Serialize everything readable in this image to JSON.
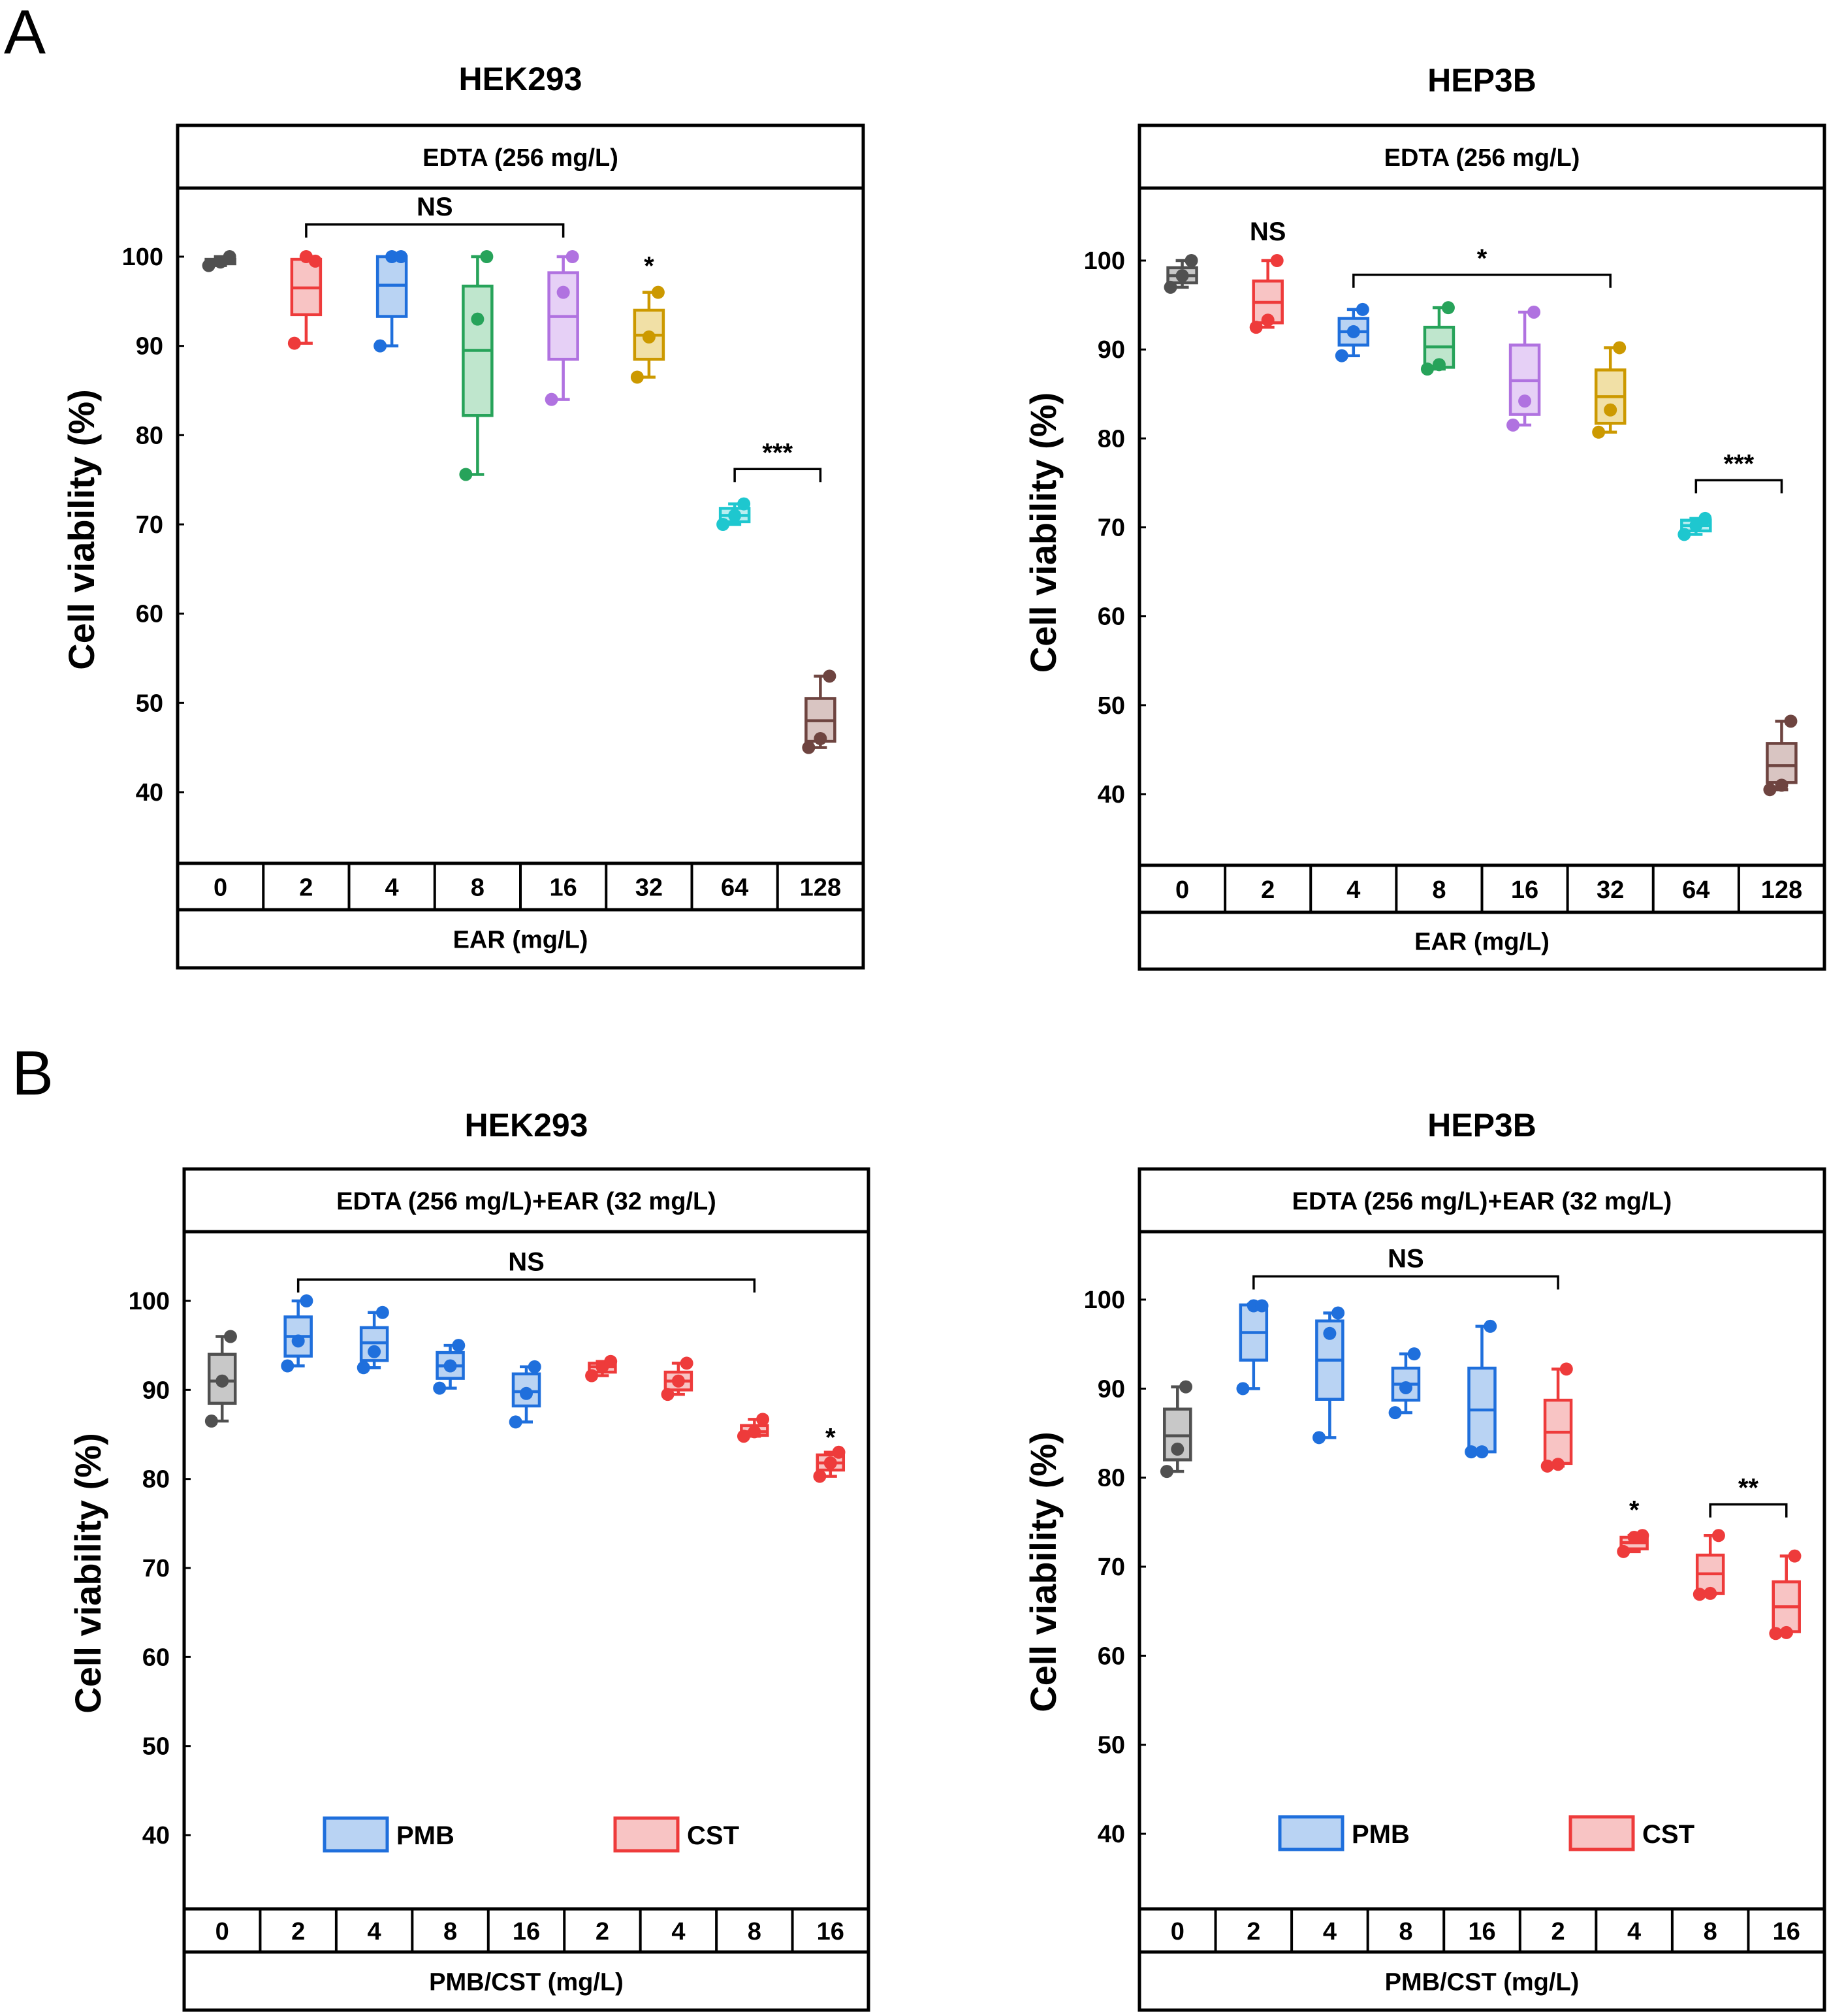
{
  "panels": [
    {
      "id": "A",
      "label": "A"
    },
    {
      "id": "B",
      "label": "B"
    }
  ],
  "chart_data": [
    {
      "type": "box",
      "panel": "A",
      "title": "HEK293",
      "condition": "EDTA (256 mg/L)",
      "xlabel": "EAR (mg/L)",
      "ylabel": "Cell viability (%)",
      "ylim": [
        30,
        108
      ],
      "yticks": [
        40,
        50,
        60,
        70,
        80,
        90,
        100
      ],
      "categories": [
        "0",
        "2",
        "4",
        "8",
        "16",
        "32",
        "64",
        "128"
      ],
      "boxes": [
        {
          "color": "#505050",
          "fill": "#c8c8c8",
          "min": 99.0,
          "q1": 99.2,
          "median": 99.4,
          "q3": 99.7,
          "max": 100.0,
          "points": [
            99.0,
            99.4,
            100.0
          ]
        },
        {
          "color": "#ee3b3b",
          "fill": "#f8c4c4",
          "min": 90.3,
          "q1": 93.5,
          "median": 96.5,
          "q3": 99.7,
          "max": 100.0,
          "points": [
            90.3,
            100.0,
            99.5
          ]
        },
        {
          "color": "#1f6fdc",
          "fill": "#b9d3f3",
          "min": 90.0,
          "q1": 93.3,
          "median": 96.8,
          "q3": 100.0,
          "max": 100.0,
          "points": [
            90.0,
            100.0,
            100.0
          ]
        },
        {
          "color": "#27a35a",
          "fill": "#bfe6cd",
          "min": 75.6,
          "q1": 82.2,
          "median": 89.5,
          "q3": 96.7,
          "max": 100.0,
          "points": [
            75.6,
            93.0,
            100.0
          ]
        },
        {
          "color": "#b072e0",
          "fill": "#e6d0f6",
          "min": 84.0,
          "q1": 88.5,
          "median": 93.3,
          "q3": 98.2,
          "max": 100.0,
          "points": [
            84.0,
            96.0,
            100.0
          ]
        },
        {
          "color": "#cc9900",
          "fill": "#f1e0a6",
          "min": 86.5,
          "q1": 88.5,
          "median": 91.2,
          "q3": 94.0,
          "max": 96.0,
          "points": [
            86.5,
            91.0,
            96.0
          ]
        },
        {
          "color": "#1ec7cf",
          "fill": "#b8eef1",
          "min": 70.0,
          "q1": 70.3,
          "median": 71.0,
          "q3": 71.8,
          "max": 72.3,
          "points": [
            70.0,
            71.0,
            72.3
          ]
        },
        {
          "color": "#6e4440",
          "fill": "#d9c5c2",
          "min": 45.0,
          "q1": 45.7,
          "median": 48.0,
          "q3": 50.5,
          "max": 53.0,
          "points": [
            45.0,
            46.0,
            53.0
          ]
        }
      ],
      "annotations": [
        {
          "text": "NS",
          "bracket": [
            1,
            4
          ],
          "y": 103.6
        },
        {
          "text": "*",
          "at": 5,
          "y": 99.6
        },
        {
          "text": "***",
          "bracket": [
            6,
            7
          ],
          "y": 76.2
        }
      ]
    },
    {
      "type": "box",
      "panel": "A",
      "title": "HEP3B",
      "condition": "EDTA (256 mg/L)",
      "xlabel": "EAR (mg/L)",
      "ylabel": "Cell viability (%)",
      "ylim": [
        30,
        108
      ],
      "yticks": [
        40,
        50,
        60,
        70,
        80,
        90,
        100
      ],
      "categories": [
        "0",
        "2",
        "4",
        "8",
        "16",
        "32",
        "64",
        "128"
      ],
      "boxes": [
        {
          "color": "#505050",
          "fill": "#c8c8c8",
          "min": 97.0,
          "q1": 97.5,
          "median": 98.3,
          "q3": 99.2,
          "max": 100.0,
          "points": [
            97.0,
            98.3,
            100.0
          ]
        },
        {
          "color": "#ee3b3b",
          "fill": "#f8c4c4",
          "min": 92.5,
          "q1": 93.0,
          "median": 95.3,
          "q3": 97.7,
          "max": 100.0,
          "points": [
            92.5,
            93.3,
            100.0
          ]
        },
        {
          "color": "#1f6fdc",
          "fill": "#b9d3f3",
          "min": 89.3,
          "q1": 90.5,
          "median": 92.0,
          "q3": 93.5,
          "max": 94.5,
          "points": [
            89.3,
            92.0,
            94.5
          ]
        },
        {
          "color": "#27a35a",
          "fill": "#bfe6cd",
          "min": 87.8,
          "q1": 88.0,
          "median": 90.3,
          "q3": 92.5,
          "max": 94.7,
          "points": [
            87.8,
            88.3,
            94.7
          ]
        },
        {
          "color": "#b072e0",
          "fill": "#e6d0f6",
          "min": 81.5,
          "q1": 82.7,
          "median": 86.5,
          "q3": 90.5,
          "max": 94.2,
          "points": [
            81.5,
            84.2,
            94.2
          ]
        },
        {
          "color": "#cc9900",
          "fill": "#f1e0a6",
          "min": 80.7,
          "q1": 81.7,
          "median": 84.7,
          "q3": 87.7,
          "max": 90.2,
          "points": [
            80.7,
            83.2,
            90.2
          ]
        },
        {
          "color": "#1ec7cf",
          "fill": "#b8eef1",
          "min": 69.2,
          "q1": 69.6,
          "median": 70.2,
          "q3": 70.8,
          "max": 71.0,
          "points": [
            69.2,
            70.2,
            71.0
          ]
        },
        {
          "color": "#6e4440",
          "fill": "#d9c5c2",
          "min": 40.5,
          "q1": 41.3,
          "median": 43.2,
          "q3": 45.7,
          "max": 48.2,
          "points": [
            40.5,
            41.0,
            48.2
          ]
        }
      ],
      "annotations": [
        {
          "text": "NS",
          "at": 1,
          "y": 103.0
        },
        {
          "text": "*",
          "bracket": [
            2,
            5
          ],
          "y": 98.4
        },
        {
          "text": "***",
          "bracket": [
            6,
            7
          ],
          "y": 75.3
        }
      ]
    },
    {
      "type": "box",
      "panel": "B",
      "title": "HEK293",
      "condition": "EDTA (256 mg/L)+EAR (32 mg/L)",
      "xlabel": "PMB/CST (mg/L)",
      "ylabel": "Cell viability (%)",
      "ylim": [
        30,
        108
      ],
      "yticks": [
        40,
        50,
        60,
        70,
        80,
        90,
        100
      ],
      "categories": [
        "0",
        "2",
        "4",
        "8",
        "16",
        "2",
        "4",
        "8",
        "16"
      ],
      "boxes": [
        {
          "color": "#505050",
          "fill": "#c8c8c8",
          "min": 86.5,
          "q1": 88.5,
          "median": 91.0,
          "q3": 94.0,
          "max": 96.0,
          "points": [
            86.5,
            91.0,
            96.0
          ]
        },
        {
          "color": "#1f6fdc",
          "fill": "#b9d3f3",
          "min": 92.7,
          "q1": 93.8,
          "median": 96.0,
          "q3": 98.2,
          "max": 100.0,
          "points": [
            92.7,
            95.5,
            100.0
          ]
        },
        {
          "color": "#1f6fdc",
          "fill": "#b9d3f3",
          "min": 92.5,
          "q1": 93.3,
          "median": 95.3,
          "q3": 97.0,
          "max": 98.7,
          "points": [
            92.5,
            94.3,
            98.7
          ]
        },
        {
          "color": "#1f6fdc",
          "fill": "#b9d3f3",
          "min": 90.2,
          "q1": 91.3,
          "median": 92.7,
          "q3": 94.2,
          "max": 95.0,
          "points": [
            90.2,
            92.7,
            95.0
          ]
        },
        {
          "color": "#1f6fdc",
          "fill": "#b9d3f3",
          "min": 86.4,
          "q1": 88.2,
          "median": 89.8,
          "q3": 91.8,
          "max": 92.6,
          "points": [
            86.4,
            89.6,
            92.6
          ]
        },
        {
          "color": "#ee3b3b",
          "fill": "#f8c4c4",
          "min": 91.6,
          "q1": 92.0,
          "median": 92.6,
          "q3": 93.0,
          "max": 93.2,
          "points": [
            91.6,
            92.6,
            93.2
          ]
        },
        {
          "color": "#ee3b3b",
          "fill": "#f8c4c4",
          "min": 89.5,
          "q1": 90.0,
          "median": 91.0,
          "q3": 92.0,
          "max": 93.0,
          "points": [
            89.5,
            91.0,
            93.0
          ]
        },
        {
          "color": "#ee3b3b",
          "fill": "#f8c4c4",
          "min": 84.8,
          "q1": 84.9,
          "median": 85.3,
          "q3": 86.0,
          "max": 86.7,
          "points": [
            84.8,
            85.3,
            86.7
          ]
        },
        {
          "color": "#ee3b3b",
          "fill": "#f8c4c4",
          "min": 80.3,
          "q1": 81.0,
          "median": 81.8,
          "q3": 82.7,
          "max": 83.0,
          "points": [
            80.3,
            81.8,
            83.0
          ]
        }
      ],
      "annotations": [
        {
          "text": "NS",
          "bracket": [
            1,
            7
          ],
          "y": 102.4
        },
        {
          "text": "*",
          "at": 8,
          "y": 85.3
        }
      ],
      "legend": [
        {
          "label": "PMB",
          "color": "#1f6fdc",
          "fill": "#b9d3f3"
        },
        {
          "label": "CST",
          "color": "#ee3b3b",
          "fill": "#f8c4c4"
        }
      ]
    },
    {
      "type": "box",
      "panel": "B",
      "title": "HEP3B",
      "condition": "EDTA (256 mg/L)+EAR (32 mg/L)",
      "xlabel": "PMB/CST (mg/L)",
      "ylabel": "Cell viability (%)",
      "ylim": [
        30,
        108
      ],
      "yticks": [
        40,
        50,
        60,
        70,
        80,
        90,
        100
      ],
      "categories": [
        "0",
        "2",
        "4",
        "8",
        "16",
        "2",
        "4",
        "8",
        "16"
      ],
      "boxes": [
        {
          "color": "#505050",
          "fill": "#c8c8c8",
          "min": 80.7,
          "q1": 82.0,
          "median": 84.7,
          "q3": 87.7,
          "max": 90.2,
          "points": [
            80.7,
            83.2,
            90.2
          ]
        },
        {
          "color": "#1f6fdc",
          "fill": "#b9d3f3",
          "min": 90.0,
          "q1": 93.2,
          "median": 96.3,
          "q3": 99.4,
          "max": 99.5,
          "points": [
            90.0,
            99.3,
            99.3
          ]
        },
        {
          "color": "#1f6fdc",
          "fill": "#b9d3f3",
          "min": 84.5,
          "q1": 88.8,
          "median": 93.2,
          "q3": 97.6,
          "max": 98.5,
          "points": [
            84.5,
            96.2,
            98.5
          ]
        },
        {
          "color": "#1f6fdc",
          "fill": "#b9d3f3",
          "min": 87.3,
          "q1": 88.7,
          "median": 90.5,
          "q3": 92.3,
          "max": 93.9,
          "points": [
            87.3,
            90.1,
            93.9
          ]
        },
        {
          "color": "#1f6fdc",
          "fill": "#b9d3f3",
          "min": 82.9,
          "q1": 82.9,
          "median": 87.6,
          "q3": 92.3,
          "max": 97.0,
          "points": [
            82.9,
            82.9,
            97.0
          ]
        },
        {
          "color": "#ee3b3b",
          "fill": "#f8c4c4",
          "min": 81.3,
          "q1": 81.6,
          "median": 85.1,
          "q3": 88.7,
          "max": 92.2,
          "points": [
            81.3,
            81.5,
            92.2
          ]
        },
        {
          "color": "#ee3b3b",
          "fill": "#f8c4c4",
          "min": 71.7,
          "q1": 72.0,
          "median": 72.7,
          "q3": 73.3,
          "max": 73.5,
          "points": [
            71.7,
            73.3,
            73.5
          ]
        },
        {
          "color": "#ee3b3b",
          "fill": "#f8c4c4",
          "min": 66.9,
          "q1": 67.0,
          "median": 69.2,
          "q3": 71.3,
          "max": 73.5,
          "points": [
            66.9,
            67.0,
            73.5
          ]
        },
        {
          "color": "#ee3b3b",
          "fill": "#f8c4c4",
          "min": 62.5,
          "q1": 62.7,
          "median": 65.5,
          "q3": 68.3,
          "max": 71.2,
          "points": [
            62.5,
            62.6,
            71.2
          ]
        }
      ],
      "annotations": [
        {
          "text": "NS",
          "bracket": [
            1,
            5
          ],
          "y": 102.6
        },
        {
          "text": "*",
          "at": 6,
          "y": 77.0
        },
        {
          "text": "**",
          "bracket": [
            7,
            8
          ],
          "y": 77.0
        }
      ],
      "legend": [
        {
          "label": "PMB",
          "color": "#1f6fdc",
          "fill": "#b9d3f3"
        },
        {
          "label": "CST",
          "color": "#ee3b3b",
          "fill": "#f8c4c4"
        }
      ]
    }
  ]
}
